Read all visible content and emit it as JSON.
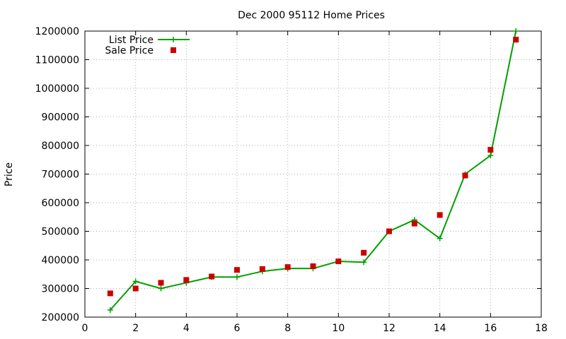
{
  "chart_data": {
    "type": "line",
    "title": "Dec 2000 95112 Home Prices",
    "xlabel": "",
    "ylabel": "Price",
    "xlim": [
      0,
      18
    ],
    "ylim": [
      200000,
      1200000
    ],
    "x_ticks": [
      "0",
      "2",
      "4",
      "6",
      "8",
      "10",
      "12",
      "14",
      "16",
      "18"
    ],
    "y_ticks": [
      "200000",
      "300000",
      "400000",
      "500000",
      "600000",
      "700000",
      "800000",
      "900000",
      "1000000",
      "1100000",
      "1200000"
    ],
    "grid": true,
    "legend_position": "top-left",
    "series": [
      {
        "name": "List Price",
        "style": "line+cross",
        "color": "#00a000",
        "x": [
          1,
          2,
          3,
          4,
          5,
          6,
          7,
          8,
          9,
          10,
          11,
          12,
          13,
          14,
          15,
          16,
          17
        ],
        "y": [
          225000,
          325000,
          300000,
          320000,
          340000,
          340000,
          360000,
          370000,
          370000,
          395000,
          392000,
          500000,
          540000,
          475000,
          700000,
          765000,
          1200000
        ]
      },
      {
        "name": "Sale Price",
        "style": "square",
        "color": "#cc0000",
        "x": [
          1,
          2,
          3,
          4,
          5,
          6,
          7,
          8,
          9,
          10,
          11,
          12,
          13,
          14,
          15,
          16,
          17
        ],
        "y": [
          283000,
          300000,
          320000,
          330000,
          342000,
          365000,
          368000,
          375000,
          378000,
          395000,
          425000,
          500000,
          527000,
          557000,
          695000,
          785000,
          1170000
        ]
      }
    ]
  }
}
